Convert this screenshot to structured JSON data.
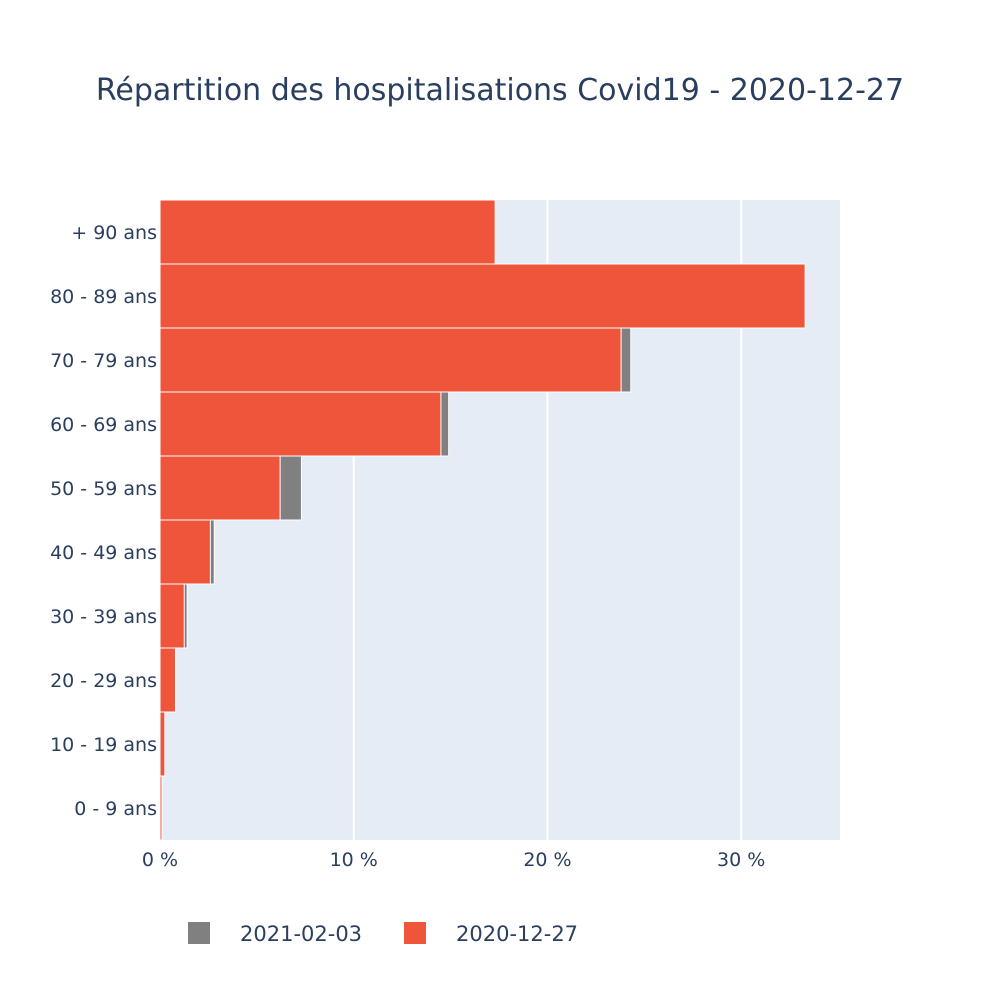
{
  "chart_data": {
    "type": "bar",
    "orientation": "horizontal",
    "barmode": "overlay",
    "title": "Répartition des hospitalisations Covid19 - 2020-12-27",
    "categories": [
      "0 - 9 ans",
      "10 - 19 ans",
      "20 - 29 ans",
      "30 - 39 ans",
      "40 - 49 ans",
      "50 - 59 ans",
      "60 - 69 ans",
      "70 - 79 ans",
      "80 - 89 ans",
      "+ 90 ans"
    ],
    "series": [
      {
        "name": "2021-02-03",
        "color": "#808080",
        "values": [
          0.1,
          0.2,
          0.7,
          1.4,
          2.8,
          7.3,
          14.9,
          24.3,
          32.5,
          16.4
        ]
      },
      {
        "name": "2020-12-27",
        "color": "#ef553b",
        "values": [
          0.1,
          0.25,
          0.8,
          1.25,
          2.6,
          6.2,
          14.5,
          23.8,
          33.3,
          17.3
        ]
      }
    ],
    "x_ticks": [
      "0 %",
      "10 %",
      "20 %",
      "30 %"
    ],
    "x_tick_values": [
      0,
      10,
      20,
      30
    ],
    "xlim": [
      0,
      35.1
    ],
    "xlabel": "",
    "ylabel": "",
    "grid": true,
    "plot_bg": "#e5ecf6",
    "legend": {
      "placement": "bottom-left",
      "orientation": "horizontal"
    }
  }
}
